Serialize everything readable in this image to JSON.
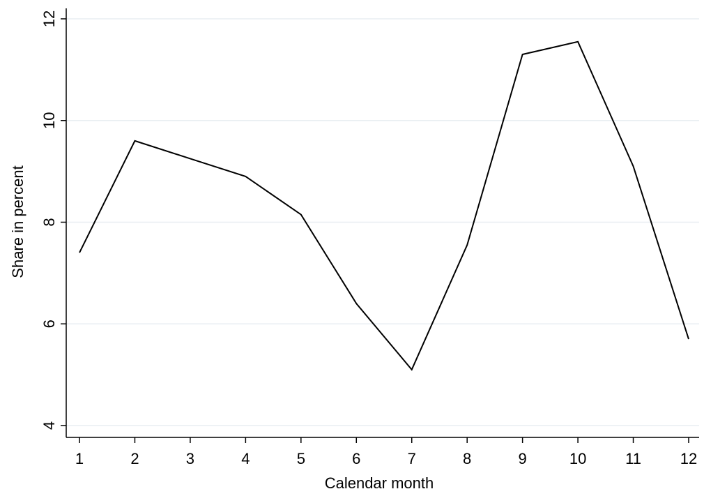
{
  "chart_data": {
    "type": "line",
    "title": "",
    "xlabel": "Calendar month",
    "ylabel": "Share in percent",
    "x": [
      1,
      2,
      3,
      4,
      5,
      6,
      7,
      8,
      9,
      10,
      11,
      12
    ],
    "x_tick_labels": [
      "1",
      "2",
      "3",
      "4",
      "5",
      "6",
      "7",
      "8",
      "9",
      "10",
      "11",
      "12"
    ],
    "y_ticks": [
      4,
      6,
      8,
      10,
      12
    ],
    "y_tick_labels": [
      "4",
      "6",
      "8",
      "10",
      "12"
    ],
    "series": [
      {
        "values": [
          7.4,
          9.6,
          9.25,
          8.9,
          8.15,
          6.4,
          5.1,
          7.55,
          11.3,
          11.55,
          9.1,
          5.7
        ]
      }
    ],
    "xlim": [
      1,
      12
    ],
    "ylim": [
      4,
      12
    ],
    "grid": true,
    "colors": {
      "line": "#000000",
      "grid": "#e8eef2",
      "background": "#ffffff"
    }
  }
}
